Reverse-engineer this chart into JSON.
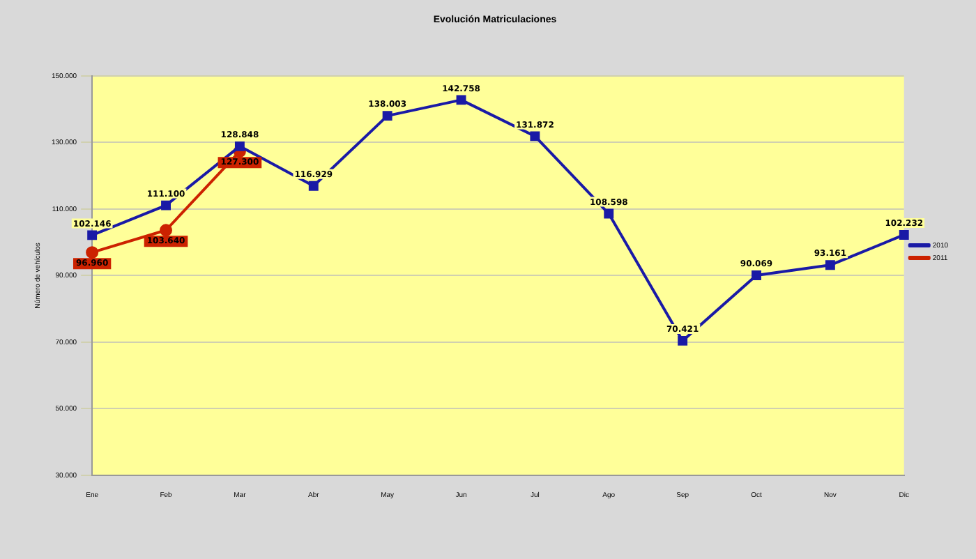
{
  "chart_data": {
    "type": "line",
    "title": "Evolución Matriculaciones",
    "ylabel": "Número de vehículos",
    "categories": [
      "Ene",
      "Feb",
      "Mar",
      "Abr",
      "May",
      "Jun",
      "Jul",
      "Ago",
      "Sep",
      "Oct",
      "Nov",
      "Dic"
    ],
    "series": [
      {
        "name": "2010",
        "color": "#1a1aa6",
        "marker": "square",
        "values": [
          102146,
          111100,
          128848,
          116929,
          138003,
          142758,
          131872,
          108598,
          70421,
          90069,
          93161,
          102232
        ],
        "value_labels": [
          "102.146",
          "111.100",
          "128.848",
          "116.929",
          "138.003",
          "142.758",
          "131.872",
          "108.598",
          "70.421",
          "90.069",
          "93.161",
          "102.232"
        ]
      },
      {
        "name": "2011",
        "color": "#cc2200",
        "marker": "circle",
        "values": [
          96960,
          103640,
          127300,
          null,
          null,
          null,
          null,
          null,
          null,
          null,
          null,
          null
        ],
        "value_labels": [
          "96.960",
          "103.640",
          "127.300",
          null,
          null,
          null,
          null,
          null,
          null,
          null,
          null,
          null
        ]
      }
    ],
    "ylim": [
      30000,
      150000
    ],
    "yticks": [
      {
        "value": 30000,
        "label": "30.000"
      },
      {
        "value": 50000,
        "label": "50.000"
      },
      {
        "value": 70000,
        "label": "70.000"
      },
      {
        "value": 90000,
        "label": "90.000"
      },
      {
        "value": 110000,
        "label": "110.000"
      },
      {
        "value": 130000,
        "label": "130.000"
      },
      {
        "value": 150000,
        "label": "150.000"
      }
    ],
    "grid": "y",
    "legend": "right",
    "line_style": "solid"
  }
}
